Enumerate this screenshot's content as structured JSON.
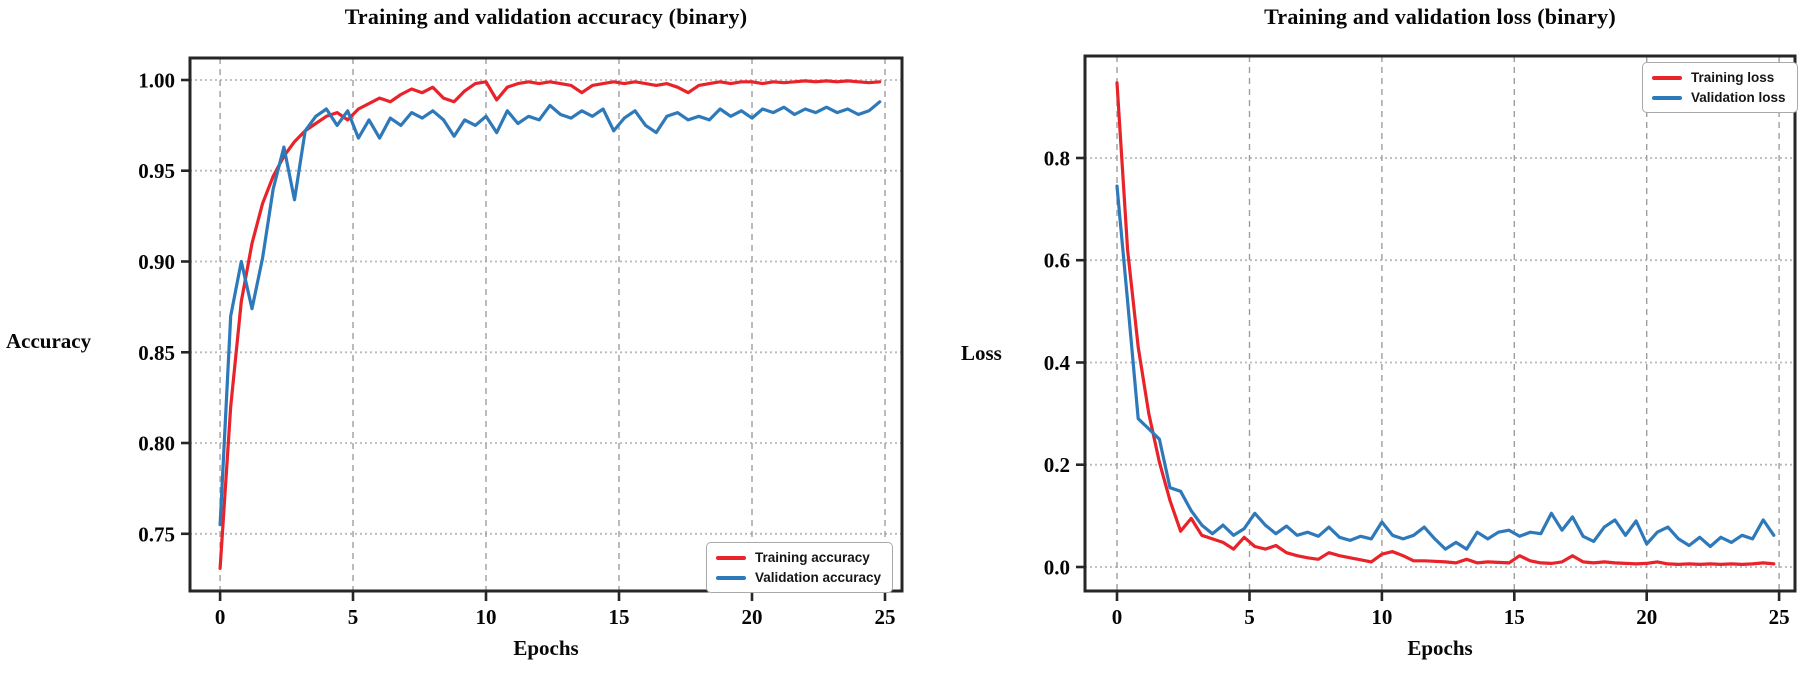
{
  "figure": {
    "background": "#ffffff"
  },
  "chart_data": [
    {
      "type": "line",
      "title": "Training and validation accuracy (binary)",
      "xlabel": "Epochs",
      "ylabel": "Accuracy",
      "grid": true,
      "legend_position": "lower right",
      "xlim": [
        -1.13,
        25.64
      ],
      "ylim": [
        0.7185,
        1.0121
      ],
      "xticks": {
        "values": [
          0,
          5,
          10,
          15,
          20,
          25
        ],
        "labels": [
          "0",
          "5",
          "10",
          "15",
          "20",
          "25"
        ]
      },
      "yticks": {
        "values": [
          0.75,
          0.8,
          0.85,
          0.9,
          0.95,
          1.0
        ],
        "labels": [
          "0.75",
          "0.80",
          "0.85",
          "0.90",
          "0.95",
          "1.00"
        ]
      },
      "x": [
        0,
        0.4,
        0.8,
        1.2,
        1.6,
        2,
        2.4,
        2.8,
        3.2,
        3.6,
        4,
        4.4,
        4.8,
        5.2,
        5.6,
        6,
        6.4,
        6.8,
        7.2,
        7.6,
        8,
        8.4,
        8.8,
        9.2,
        9.6,
        10,
        10.4,
        10.8,
        11.2,
        11.6,
        12,
        12.4,
        12.8,
        13.2,
        13.6,
        14,
        14.4,
        14.8,
        15.2,
        15.6,
        16,
        16.4,
        16.8,
        17.2,
        17.6,
        18,
        18.4,
        18.8,
        19.2,
        19.6,
        20,
        20.4,
        20.8,
        21.2,
        21.6,
        22,
        22.4,
        22.8,
        23.2,
        23.6,
        24,
        24.4,
        24.8
      ],
      "series": [
        {
          "name": "Training accuracy",
          "color": "#e8232a",
          "values": [
            0.731,
            0.82,
            0.878,
            0.91,
            0.932,
            0.947,
            0.958,
            0.966,
            0.972,
            0.976,
            0.98,
            0.982,
            0.978,
            0.984,
            0.987,
            0.99,
            0.988,
            0.992,
            0.995,
            0.993,
            0.996,
            0.99,
            0.988,
            0.994,
            0.998,
            0.999,
            0.989,
            0.996,
            0.998,
            0.999,
            0.998,
            0.999,
            0.998,
            0.997,
            0.993,
            0.997,
            0.998,
            0.999,
            0.998,
            0.999,
            0.998,
            0.997,
            0.998,
            0.996,
            0.993,
            0.997,
            0.998,
            0.999,
            0.998,
            0.999,
            0.999,
            0.998,
            0.999,
            0.9985,
            0.999,
            0.9995,
            0.999,
            0.9995,
            0.999,
            0.9995,
            0.999,
            0.9985,
            0.999
          ]
        },
        {
          "name": "Validation accuracy",
          "color": "#2e79b9",
          "values": [
            0.755,
            0.87,
            0.9,
            0.874,
            0.902,
            0.94,
            0.963,
            0.934,
            0.972,
            0.98,
            0.984,
            0.975,
            0.983,
            0.968,
            0.978,
            0.968,
            0.979,
            0.975,
            0.982,
            0.979,
            0.983,
            0.978,
            0.969,
            0.978,
            0.975,
            0.98,
            0.971,
            0.983,
            0.976,
            0.98,
            0.978,
            0.986,
            0.981,
            0.979,
            0.983,
            0.98,
            0.984,
            0.972,
            0.979,
            0.983,
            0.975,
            0.971,
            0.98,
            0.982,
            0.978,
            0.98,
            0.978,
            0.984,
            0.98,
            0.983,
            0.979,
            0.984,
            0.982,
            0.985,
            0.981,
            0.984,
            0.982,
            0.985,
            0.982,
            0.984,
            0.981,
            0.983,
            0.988
          ]
        }
      ]
    },
    {
      "type": "line",
      "title": "Training and validation loss (binary)",
      "xlabel": "Epochs",
      "ylabel": "Loss",
      "grid": true,
      "legend_position": "upper right",
      "xlim": [
        -1.21,
        25.6
      ],
      "ylim": [
        -0.047,
        0.9995
      ],
      "xticks": {
        "values": [
          0,
          5,
          10,
          15,
          20,
          25
        ],
        "labels": [
          "0",
          "5",
          "10",
          "15",
          "20",
          "25"
        ]
      },
      "yticks": {
        "values": [
          0.0,
          0.2,
          0.4,
          0.6,
          0.8
        ],
        "labels": [
          "0.0",
          "0.2",
          "0.4",
          "0.6",
          "0.8"
        ]
      },
      "x": [
        0,
        0.4,
        0.8,
        1.2,
        1.6,
        2,
        2.4,
        2.8,
        3.2,
        3.6,
        4,
        4.4,
        4.8,
        5.2,
        5.6,
        6,
        6.4,
        6.8,
        7.2,
        7.6,
        8,
        8.4,
        8.8,
        9.2,
        9.6,
        10,
        10.4,
        10.8,
        11.2,
        11.6,
        12,
        12.4,
        12.8,
        13.2,
        13.6,
        14,
        14.4,
        14.8,
        15.2,
        15.6,
        16,
        16.4,
        16.8,
        17.2,
        17.6,
        18,
        18.4,
        18.8,
        19.2,
        19.6,
        20,
        20.4,
        20.8,
        21.2,
        21.6,
        22,
        22.4,
        22.8,
        23.2,
        23.6,
        24,
        24.4,
        24.8
      ],
      "series": [
        {
          "name": "Training loss",
          "color": "#e8232a",
          "values": [
            0.947,
            0.62,
            0.43,
            0.3,
            0.205,
            0.13,
            0.07,
            0.095,
            0.062,
            0.055,
            0.048,
            0.035,
            0.058,
            0.04,
            0.035,
            0.042,
            0.028,
            0.022,
            0.018,
            0.015,
            0.028,
            0.022,
            0.018,
            0.014,
            0.01,
            0.025,
            0.03,
            0.022,
            0.012,
            0.012,
            0.011,
            0.01,
            0.008,
            0.015,
            0.008,
            0.01,
            0.009,
            0.008,
            0.022,
            0.012,
            0.008,
            0.007,
            0.01,
            0.022,
            0.01,
            0.008,
            0.01,
            0.008,
            0.007,
            0.006,
            0.007,
            0.01,
            0.006,
            0.005,
            0.006,
            0.005,
            0.006,
            0.005,
            0.006,
            0.005,
            0.006,
            0.008,
            0.006
          ]
        },
        {
          "name": "Validation loss",
          "color": "#2e79b9",
          "values": [
            0.745,
            0.52,
            0.29,
            0.27,
            0.25,
            0.155,
            0.148,
            0.11,
            0.082,
            0.065,
            0.082,
            0.062,
            0.075,
            0.105,
            0.082,
            0.065,
            0.08,
            0.062,
            0.068,
            0.06,
            0.078,
            0.058,
            0.052,
            0.06,
            0.055,
            0.088,
            0.062,
            0.055,
            0.062,
            0.078,
            0.055,
            0.035,
            0.048,
            0.035,
            0.068,
            0.055,
            0.068,
            0.072,
            0.06,
            0.068,
            0.065,
            0.105,
            0.072,
            0.098,
            0.06,
            0.05,
            0.078,
            0.092,
            0.062,
            0.09,
            0.045,
            0.068,
            0.078,
            0.055,
            0.042,
            0.058,
            0.04,
            0.058,
            0.048,
            0.062,
            0.055,
            0.092,
            0.062
          ]
        }
      ]
    }
  ]
}
